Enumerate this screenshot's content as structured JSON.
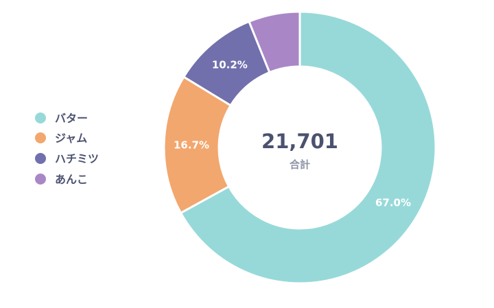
{
  "chart_data": {
    "type": "pie",
    "donut": true,
    "categories": [
      "バター",
      "ジャム",
      "ハチミツ",
      "あんこ"
    ],
    "values": [
      67.0,
      16.7,
      10.2,
      6.1
    ],
    "value_labels": [
      "67.0%",
      "16.7%",
      "10.2%",
      ""
    ],
    "colors": [
      "#97d9d8",
      "#f2a76e",
      "#7170ad",
      "#a987c6"
    ],
    "center_value": "21,701",
    "center_label": "合計",
    "legend_position": "left"
  }
}
